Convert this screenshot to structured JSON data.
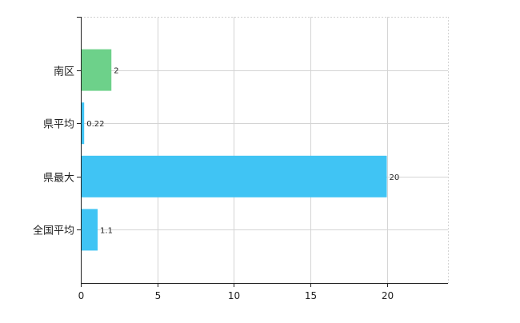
{
  "chart_data": {
    "type": "bar",
    "orientation": "horizontal",
    "categories": [
      "南区",
      "県平均",
      "県最大",
      "全国平均"
    ],
    "values": [
      2,
      0.22,
      20,
      1.1
    ],
    "data_labels": [
      "2",
      "0.22",
      "20",
      "1.1"
    ],
    "bar_colors": [
      "#6dd18a",
      "#40c4f4",
      "#40c4f4",
      "#40c4f4"
    ],
    "xlim": [
      0,
      24
    ],
    "xticks": [
      0,
      5,
      10,
      15,
      20
    ],
    "xtick_labels": [
      "0",
      "5",
      "10",
      "15",
      "20"
    ],
    "grid": true,
    "legend": "none",
    "title": "",
    "xlabel": "",
    "ylabel": ""
  }
}
